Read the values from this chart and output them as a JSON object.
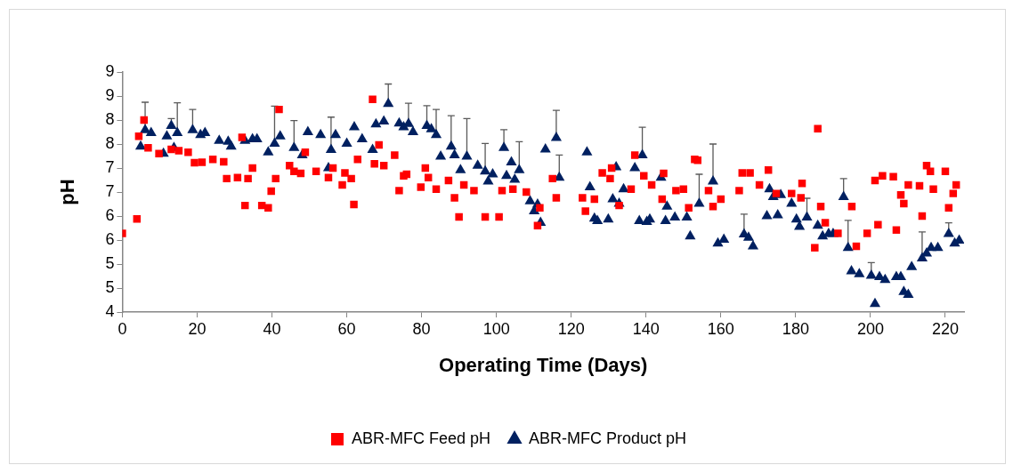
{
  "chart_data": {
    "type": "scatter",
    "xlabel": "Operating Time (Days)",
    "ylabel": "pH",
    "xlim": [
      0,
      225
    ],
    "xticks": [
      0,
      20,
      40,
      60,
      80,
      100,
      120,
      140,
      160,
      180,
      200,
      220
    ],
    "ylim": [
      4,
      9
    ],
    "yticks": [
      4,
      {
        "value": 4.5,
        "label": "5"
      },
      5,
      {
        "value": 5.5,
        "label": "6"
      },
      6,
      {
        "value": 6.5,
        "label": "7"
      },
      7,
      {
        "value": 7.5,
        "label": "8"
      },
      8,
      {
        "value": 8.5,
        "label": "9"
      },
      9
    ],
    "grid": false,
    "legend": "bottom",
    "series": [
      {
        "name": "ABR-MFC Feed pH",
        "color": "#ff0000",
        "marker": "square",
        "x": [
          0,
          3.9,
          4.4,
          5.8,
          6.9,
          9.8,
          13.1,
          15.1,
          17.6,
          19.3,
          21.3,
          24.2,
          27.1,
          27.9,
          30.8,
          32,
          32.8,
          33.6,
          34.8,
          37.3,
          39,
          39.8,
          41,
          41.9,
          44.7,
          45.9,
          47.7,
          48.9,
          51.8,
          55.1,
          56.3,
          58.8,
          59.5,
          61.2,
          61.9,
          62.9,
          66.9,
          67.4,
          68.6,
          69.9,
          72.8,
          74,
          75.2,
          76,
          79.8,
          81,
          81.8,
          83.9,
          87.2,
          88.8,
          90,
          91.3,
          94,
          97,
          100.7,
          101.5,
          104.4,
          108,
          111,
          111.6,
          115,
          116,
          123,
          123.8,
          126.2,
          128.3,
          130.4,
          130.8,
          132.8,
          136,
          137,
          139.4,
          141.5,
          144.3,
          144.7,
          148,
          150,
          151.4,
          153,
          153.8,
          156.7,
          157.9,
          160,
          164.9,
          165.7,
          167.8,
          170.3,
          172.7,
          174.8,
          178.9,
          181.4,
          181.7,
          185.1,
          185.9,
          186.7,
          187.9,
          191.3,
          195,
          196.2,
          199.1,
          201.2,
          202,
          203.2,
          206.1,
          206.9,
          208.1,
          208.9,
          210.1,
          213.1,
          213.8,
          215,
          216,
          216.8,
          220,
          220.9,
          222.1,
          222.9
        ],
        "values": [
          5.64,
          5.94,
          7.66,
          8.0,
          7.42,
          7.3,
          7.39,
          7.36,
          7.33,
          7.11,
          7.12,
          7.18,
          7.13,
          6.78,
          6.8,
          7.64,
          6.22,
          6.78,
          7.0,
          6.22,
          6.17,
          6.52,
          6.78,
          8.22,
          7.05,
          6.93,
          6.89,
          7.33,
          6.93,
          6.8,
          7.0,
          6.65,
          6.9,
          6.78,
          6.24,
          7.18,
          8.43,
          7.09,
          7.48,
          7.05,
          7.27,
          6.53,
          6.84,
          6.87,
          6.6,
          7.0,
          6.8,
          6.56,
          6.74,
          6.38,
          5.98,
          6.65,
          6.53,
          5.98,
          5.98,
          6.53,
          6.56,
          6.5,
          5.8,
          6.17,
          6.78,
          6.38,
          6.38,
          6.1,
          6.35,
          6.9,
          6.78,
          7.0,
          6.22,
          6.56,
          7.27,
          6.84,
          6.65,
          6.35,
          6.89,
          6.53,
          6.56,
          6.17,
          7.18,
          7.16,
          6.53,
          6.2,
          6.35,
          6.53,
          6.9,
          6.9,
          6.65,
          6.96,
          6.47,
          6.47,
          6.38,
          6.68,
          5.34,
          7.82,
          6.2,
          5.86,
          5.64,
          6.2,
          5.37,
          5.64,
          6.74,
          5.82,
          6.84,
          6.82,
          5.71,
          6.44,
          6.26,
          6.65,
          6.63,
          6.0,
          7.05,
          6.93,
          6.56,
          6.93,
          6.17,
          6.47,
          6.65
        ]
      },
      {
        "name": "ABR-MFC Product pH",
        "color": "#002060",
        "marker": "triangle",
        "x": [
          4.9,
          6.1,
          7.7,
          11,
          11.9,
          13.1,
          13.8,
          14.7,
          18.8,
          20.9,
          22.1,
          25.9,
          28.3,
          29.1,
          32.8,
          34.8,
          36,
          39,
          40.7,
          42.2,
          45.9,
          48.1,
          49.6,
          53,
          55.1,
          55.8,
          57,
          60,
          62,
          64.1,
          66.9,
          67.8,
          69.9,
          71.1,
          74,
          75.2,
          76.5,
          77.7,
          81.4,
          82.6,
          83.9,
          85.1,
          87.9,
          88.8,
          90.4,
          92.1,
          95,
          97,
          97.8,
          99,
          102,
          102.7,
          104,
          104.9,
          106.1,
          109,
          110.1,
          111,
          111.8,
          113.1,
          116,
          116.8,
          124.2,
          125,
          126.2,
          127,
          129.9,
          131.1,
          132,
          132.8,
          134,
          137,
          138.2,
          139,
          140.2,
          141,
          144,
          145.2,
          145.6,
          147.7,
          150.9,
          151.8,
          154.2,
          157.9,
          159.2,
          160.8,
          166.2,
          167.4,
          168.6,
          172.3,
          173,
          174,
          175.2,
          176,
          178.9,
          180.2,
          181,
          183,
          185.9,
          187.2,
          188.8,
          190,
          192.8,
          194,
          194.9,
          197,
          200.2,
          201.2,
          202.4,
          203.9,
          206.9,
          208.1,
          208.9,
          210.1,
          211,
          213.8,
          215,
          216.2,
          218,
          220.9,
          222.5,
          223.7
        ],
        "values": [
          7.45,
          7.79,
          7.73,
          7.3,
          7.66,
          7.88,
          7.42,
          7.73,
          7.79,
          7.69,
          7.73,
          7.57,
          7.55,
          7.45,
          7.57,
          7.6,
          7.6,
          7.33,
          7.51,
          7.66,
          7.42,
          7.27,
          7.75,
          7.69,
          7.0,
          7.38,
          7.69,
          7.51,
          7.85,
          7.6,
          7.38,
          7.91,
          7.97,
          8.34,
          7.93,
          7.85,
          7.92,
          7.75,
          7.88,
          7.81,
          7.69,
          7.24,
          7.45,
          7.27,
          6.96,
          7.24,
          7.05,
          6.93,
          6.72,
          6.87,
          7.42,
          6.84,
          7.12,
          6.76,
          6.96,
          6.31,
          6.1,
          6.24,
          5.86,
          7.39,
          7.63,
          6.8,
          7.33,
          6.6,
          5.95,
          5.9,
          5.93,
          6.35,
          7.02,
          6.26,
          6.56,
          7.0,
          5.9,
          7.27,
          5.88,
          5.93,
          6.8,
          5.9,
          6.2,
          5.97,
          5.97,
          5.58,
          6.26,
          6.72,
          5.43,
          5.51,
          5.62,
          5.55,
          5.37,
          6.0,
          6.56,
          6.4,
          6.02,
          6.44,
          6.26,
          5.93,
          5.78,
          5.97,
          5.8,
          5.58,
          5.63,
          5.63,
          6.4,
          5.34,
          4.85,
          4.79,
          4.76,
          4.17,
          4.73,
          4.67,
          4.73,
          4.73,
          4.42,
          4.36,
          4.94,
          5.12,
          5.22,
          5.34,
          5.34,
          5.63,
          5.43,
          5.49
        ],
        "errors": [
          null,
          [
            7.79,
            8.37
          ],
          null,
          null,
          null,
          [
            7.88,
            8.03
          ],
          null,
          [
            7.73,
            8.36
          ],
          [
            7.79,
            8.22
          ],
          null,
          null,
          null,
          null,
          null,
          null,
          null,
          null,
          null,
          [
            7.51,
            8.29
          ],
          null,
          [
            7.42,
            7.99
          ],
          null,
          null,
          null,
          null,
          [
            7.38,
            8.06
          ],
          null,
          null,
          null,
          null,
          null,
          null,
          null,
          [
            8.34,
            8.75
          ],
          null,
          null,
          [
            7.92,
            8.35
          ],
          null,
          [
            7.88,
            8.3
          ],
          null,
          [
            7.69,
            8.22
          ],
          null,
          [
            7.45,
            8.09
          ],
          null,
          null,
          [
            7.24,
            8.03
          ],
          null,
          [
            6.93,
            7.51
          ],
          null,
          null,
          [
            7.42,
            7.8
          ],
          null,
          null,
          null,
          [
            6.96,
            7.55
          ],
          null,
          null,
          null,
          null,
          null,
          [
            7.63,
            8.2
          ],
          [
            6.8,
            7.27
          ],
          null,
          null,
          null,
          null,
          null,
          null,
          null,
          null,
          null,
          null,
          null,
          [
            7.27,
            7.85
          ],
          null,
          null,
          null,
          null,
          null,
          null,
          null,
          null,
          [
            6.26,
            6.87
          ],
          [
            6.72,
            7.5
          ],
          null,
          null,
          [
            5.62,
            6.04
          ],
          null,
          null,
          null,
          null,
          null,
          null,
          null,
          null,
          null,
          null,
          [
            5.97,
            6.37
          ],
          null,
          null,
          null,
          null,
          [
            6.4,
            6.78
          ],
          [
            5.34,
            5.91
          ],
          null,
          null,
          [
            4.76,
            5.03
          ],
          null,
          null,
          null,
          null,
          null,
          null,
          null,
          null,
          [
            5.12,
            5.67
          ],
          null,
          null,
          null,
          [
            5.63,
            5.86
          ],
          null,
          null
        ]
      }
    ]
  }
}
